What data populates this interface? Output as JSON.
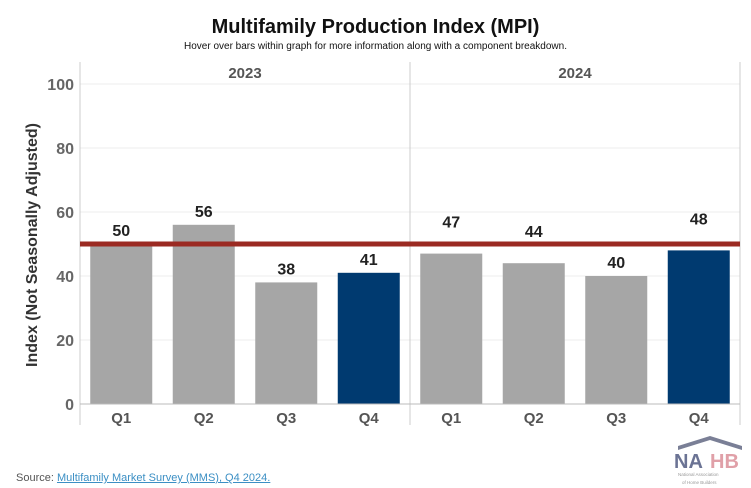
{
  "title": "Multifamily Production Index (MPI)",
  "subtitle": "Hover over bars within graph for more information along with a component breakdown.",
  "source_label": "Source:",
  "source_link": "Multifamily Market Survey (MMS), Q4 2024.",
  "logo_text": "NAHB National Association of Home Builders",
  "chart_data": {
    "type": "bar",
    "ylabel": "Index (Not Seasonally Adjusted)",
    "ylim": [
      0,
      100
    ],
    "yticks": [
      0,
      20,
      40,
      60,
      80,
      100
    ],
    "panels": [
      {
        "label": "2023",
        "categories": [
          "Q1",
          "Q2",
          "Q3",
          "Q4"
        ],
        "values": [
          50,
          56,
          38,
          41
        ]
      },
      {
        "label": "2024",
        "categories": [
          "Q1",
          "Q2",
          "Q3",
          "Q4"
        ],
        "values": [
          47,
          44,
          40,
          48
        ]
      }
    ],
    "reference_line": 50,
    "colors": {
      "bar": "#a6a6a6",
      "highlight": "#003a70",
      "reference": "#9b2a22"
    },
    "highlight_category": "Q4",
    "grid": true
  }
}
